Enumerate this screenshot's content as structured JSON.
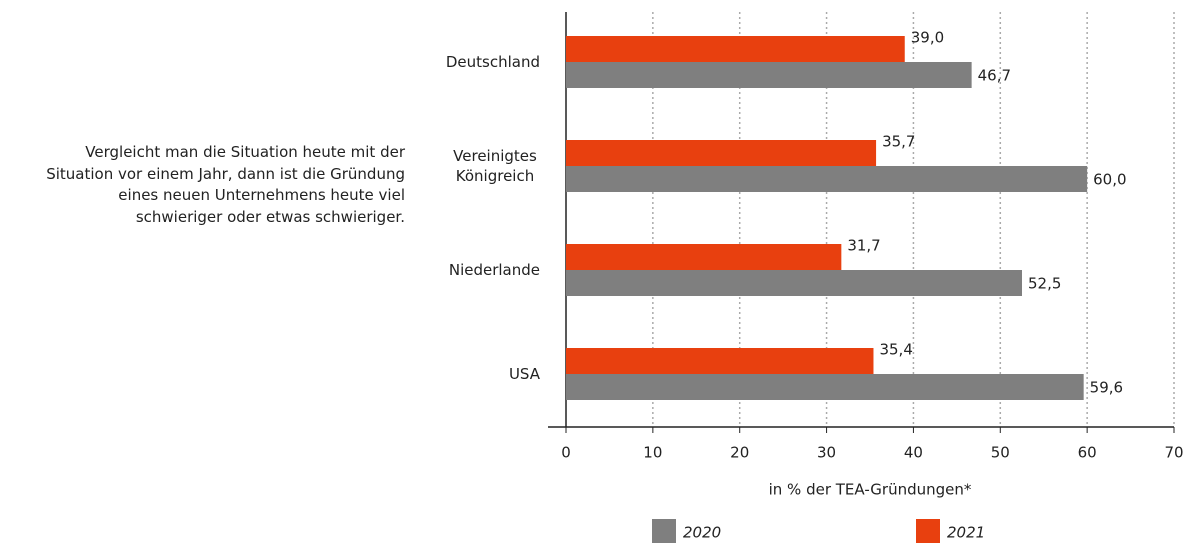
{
  "chart_data": {
    "type": "barh",
    "annotation": [
      "Vergleicht man die Situation heute mit der",
      "Situation vor einem Jahr, dann ist die Gründung",
      "eines neuen Unternehmens heute viel",
      "schwieriger oder etwas schwieriger."
    ],
    "categories": [
      "Deutschland",
      "Vereinigtes Königreich",
      "Niederlande",
      "USA"
    ],
    "series": [
      {
        "name": "2020",
        "color": "#7f7f7f",
        "values": [
          46.7,
          60.0,
          52.5,
          59.6
        ],
        "value_labels": [
          "46,7",
          "60,0",
          "52,5",
          "59,6"
        ]
      },
      {
        "name": "2021",
        "color": "#e8400f",
        "values": [
          39.0,
          35.7,
          31.7,
          35.4
        ],
        "value_labels": [
          "39,0",
          "35,7",
          "31,7",
          "35,4"
        ]
      }
    ],
    "xlabel": "in % der TEA-Gründungen*",
    "xlim": [
      0,
      70
    ],
    "xticks": [
      0,
      10,
      20,
      30,
      40,
      50,
      60,
      70
    ],
    "grid": true,
    "legend": "bottom"
  }
}
